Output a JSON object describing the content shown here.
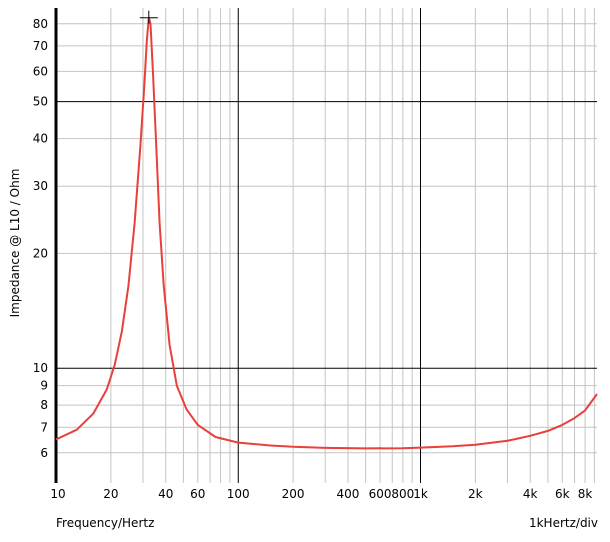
{
  "chart_data": {
    "type": "line",
    "title": "",
    "ylabel": "Impedance @ L10 / Ohm",
    "xlabel": "Frequency/Hertz",
    "x_scale_label": "1kHertz/div",
    "x_scale": "log",
    "y_scale": "log",
    "xlim": [
      10,
      9300
    ],
    "ylim": [
      5,
      88
    ],
    "grid": true,
    "legend": "none",
    "x_ticks": [
      {
        "value": 10,
        "label": "10"
      },
      {
        "value": 20,
        "label": "20"
      },
      {
        "value": 40,
        "label": "40"
      },
      {
        "value": 60,
        "label": "60"
      },
      {
        "value": 100,
        "label": "100"
      },
      {
        "value": 200,
        "label": "200"
      },
      {
        "value": 400,
        "label": "400"
      },
      {
        "value": 600,
        "label": "600"
      },
      {
        "value": 800,
        "label": "800"
      },
      {
        "value": 1000,
        "label": "1k"
      },
      {
        "value": 2000,
        "label": "2k"
      },
      {
        "value": 4000,
        "label": "4k"
      },
      {
        "value": 6000,
        "label": "6k"
      },
      {
        "value": 8000,
        "label": "8k"
      }
    ],
    "y_ticks": [
      {
        "value": 6,
        "label": "6"
      },
      {
        "value": 7,
        "label": "7"
      },
      {
        "value": 8,
        "label": "8"
      },
      {
        "value": 9,
        "label": "9"
      },
      {
        "value": 10,
        "label": "10"
      },
      {
        "value": 20,
        "label": "20"
      },
      {
        "value": 30,
        "label": "30"
      },
      {
        "value": 40,
        "label": "40"
      },
      {
        "value": 50,
        "label": "50"
      },
      {
        "value": 60,
        "label": "60"
      },
      {
        "value": 70,
        "label": "70"
      },
      {
        "value": 80,
        "label": "80"
      }
    ],
    "x_minor_grid": [
      30,
      50,
      70,
      80,
      90,
      300,
      500,
      700,
      900,
      3000,
      5000,
      7000,
      9000
    ],
    "x_major_grid": [
      100,
      1000
    ],
    "y_major_grid": [
      10,
      50
    ],
    "series": [
      {
        "color": "#e8403a",
        "x": [
          10,
          13,
          16,
          19,
          21,
          23,
          25,
          27,
          29,
          30.5,
          31.5,
          32.3,
          33,
          34,
          35.5,
          37,
          39,
          42,
          46,
          52,
          60,
          75,
          100,
          150,
          200,
          300,
          500,
          800,
          1000,
          1500,
          2000,
          3000,
          4000,
          5000,
          6000,
          7000,
          8000,
          9300
        ],
        "y": [
          6.5,
          6.9,
          7.6,
          8.8,
          10.2,
          12.5,
          16.5,
          24,
          38,
          55,
          72,
          83,
          80,
          60,
          38,
          24,
          16.5,
          11.5,
          9,
          7.8,
          7.1,
          6.6,
          6.38,
          6.27,
          6.22,
          6.18,
          6.16,
          6.17,
          6.19,
          6.24,
          6.3,
          6.45,
          6.65,
          6.85,
          7.1,
          7.4,
          7.75,
          8.55
        ]
      }
    ],
    "peak_marker": {
      "x": 32.3,
      "y": 83
    }
  }
}
